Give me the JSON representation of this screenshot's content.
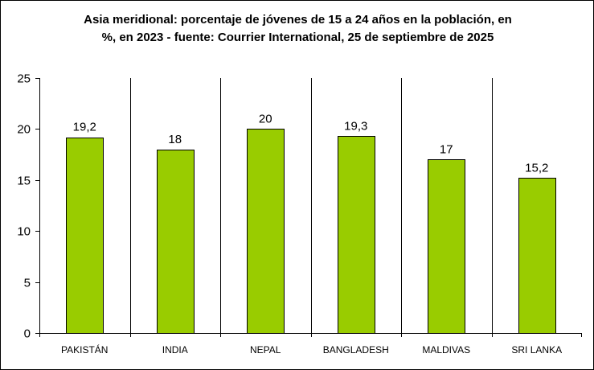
{
  "chart_data": {
    "type": "bar",
    "title_lines": [
      "Asia meridional: porcentaje de jóvenes de 15 a 24 años en la población, en",
      "%, en 2023 - fuente: Courrier International, 25 de septiembre de 2025"
    ],
    "categories": [
      "PAKISTÁN",
      "INDIA",
      "NEPAL",
      "BANGLADESH",
      "MALDIVAS",
      "SRI LANKA"
    ],
    "values": [
      19.2,
      18,
      20,
      19.3,
      17,
      15.2
    ],
    "data_labels": [
      "19,2",
      "18",
      "20",
      "19,3",
      "17",
      "15,2"
    ],
    "y_ticks": [
      0,
      5,
      10,
      15,
      20,
      25
    ],
    "y_tick_labels": [
      "0",
      "5",
      "10",
      "15",
      "20",
      "25"
    ],
    "ylim": [
      0,
      25
    ],
    "xlabel": "",
    "ylabel": "",
    "legend": "none",
    "grid": "vertical separators between categories",
    "colors": {
      "bar_fill": "#99CC00",
      "bar_stroke": "#000000",
      "axis": "#000000",
      "background": "#FFFFFF"
    }
  }
}
